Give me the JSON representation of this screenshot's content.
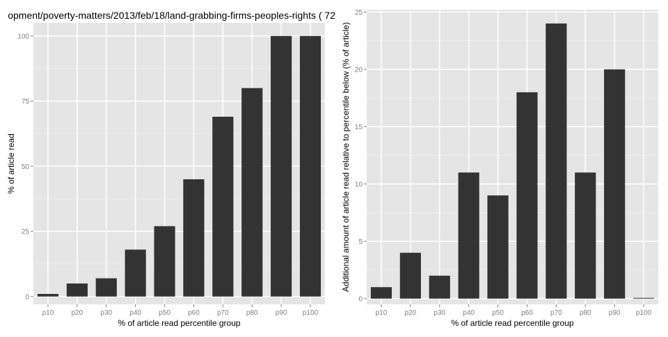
{
  "page": {
    "title": "opment/poverty-matters/2013/feb/18/land-grabbing-firms-peoples-rights ( 72"
  },
  "colors": {
    "bar": "#333333",
    "panel": "#e5e5e5",
    "grid_major": "#ffffff",
    "grid_minor": "#f2f2f2",
    "tick_text": "#7f7f7f"
  },
  "chart_data": [
    {
      "type": "bar",
      "categories": [
        "p10",
        "p20",
        "p30",
        "p40",
        "p50",
        "p60",
        "p70",
        "p80",
        "p90",
        "p100"
      ],
      "values": [
        1,
        5,
        7,
        18,
        27,
        45,
        69,
        80,
        100,
        100
      ],
      "xlabel": "% of article read percentile group",
      "ylabel": "% of article read",
      "ylim": [
        -3,
        105
      ],
      "yticks": [
        0,
        25,
        50,
        75,
        100
      ],
      "ytick_labels": [
        "0",
        "25",
        "50",
        "75",
        "100"
      ],
      "grid": true,
      "legend": "none"
    },
    {
      "type": "bar",
      "categories": [
        "p10",
        "p20",
        "p30",
        "p40",
        "p50",
        "p60",
        "p70",
        "p80",
        "p90",
        "p100"
      ],
      "values": [
        1,
        4,
        2,
        11,
        9,
        18,
        24,
        11,
        20,
        0
      ],
      "xlabel": "% of article read percentile group",
      "ylabel": "Additional amount of article read relative to percentile below (% of article)",
      "ylim": [
        -0.5,
        25.2
      ],
      "yticks": [
        0,
        5,
        10,
        15,
        20,
        25
      ],
      "ytick_labels": [
        "0",
        "5",
        "10",
        "15",
        "20",
        "25"
      ],
      "grid": true,
      "legend": "none"
    }
  ]
}
